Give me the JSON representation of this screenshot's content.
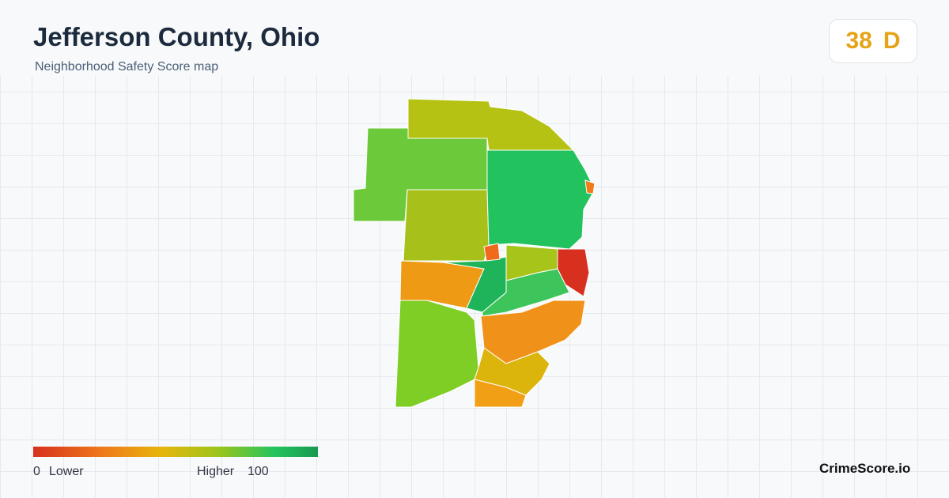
{
  "header": {
    "title": "Jefferson County, Ohio",
    "subtitle": "Neighborhood Safety Score map"
  },
  "score": {
    "value": 38,
    "grade": "D"
  },
  "legend": {
    "min": 0,
    "min_label": "Lower",
    "max_label": "Higher",
    "max": 100
  },
  "brand": "CrimeScore.io"
}
